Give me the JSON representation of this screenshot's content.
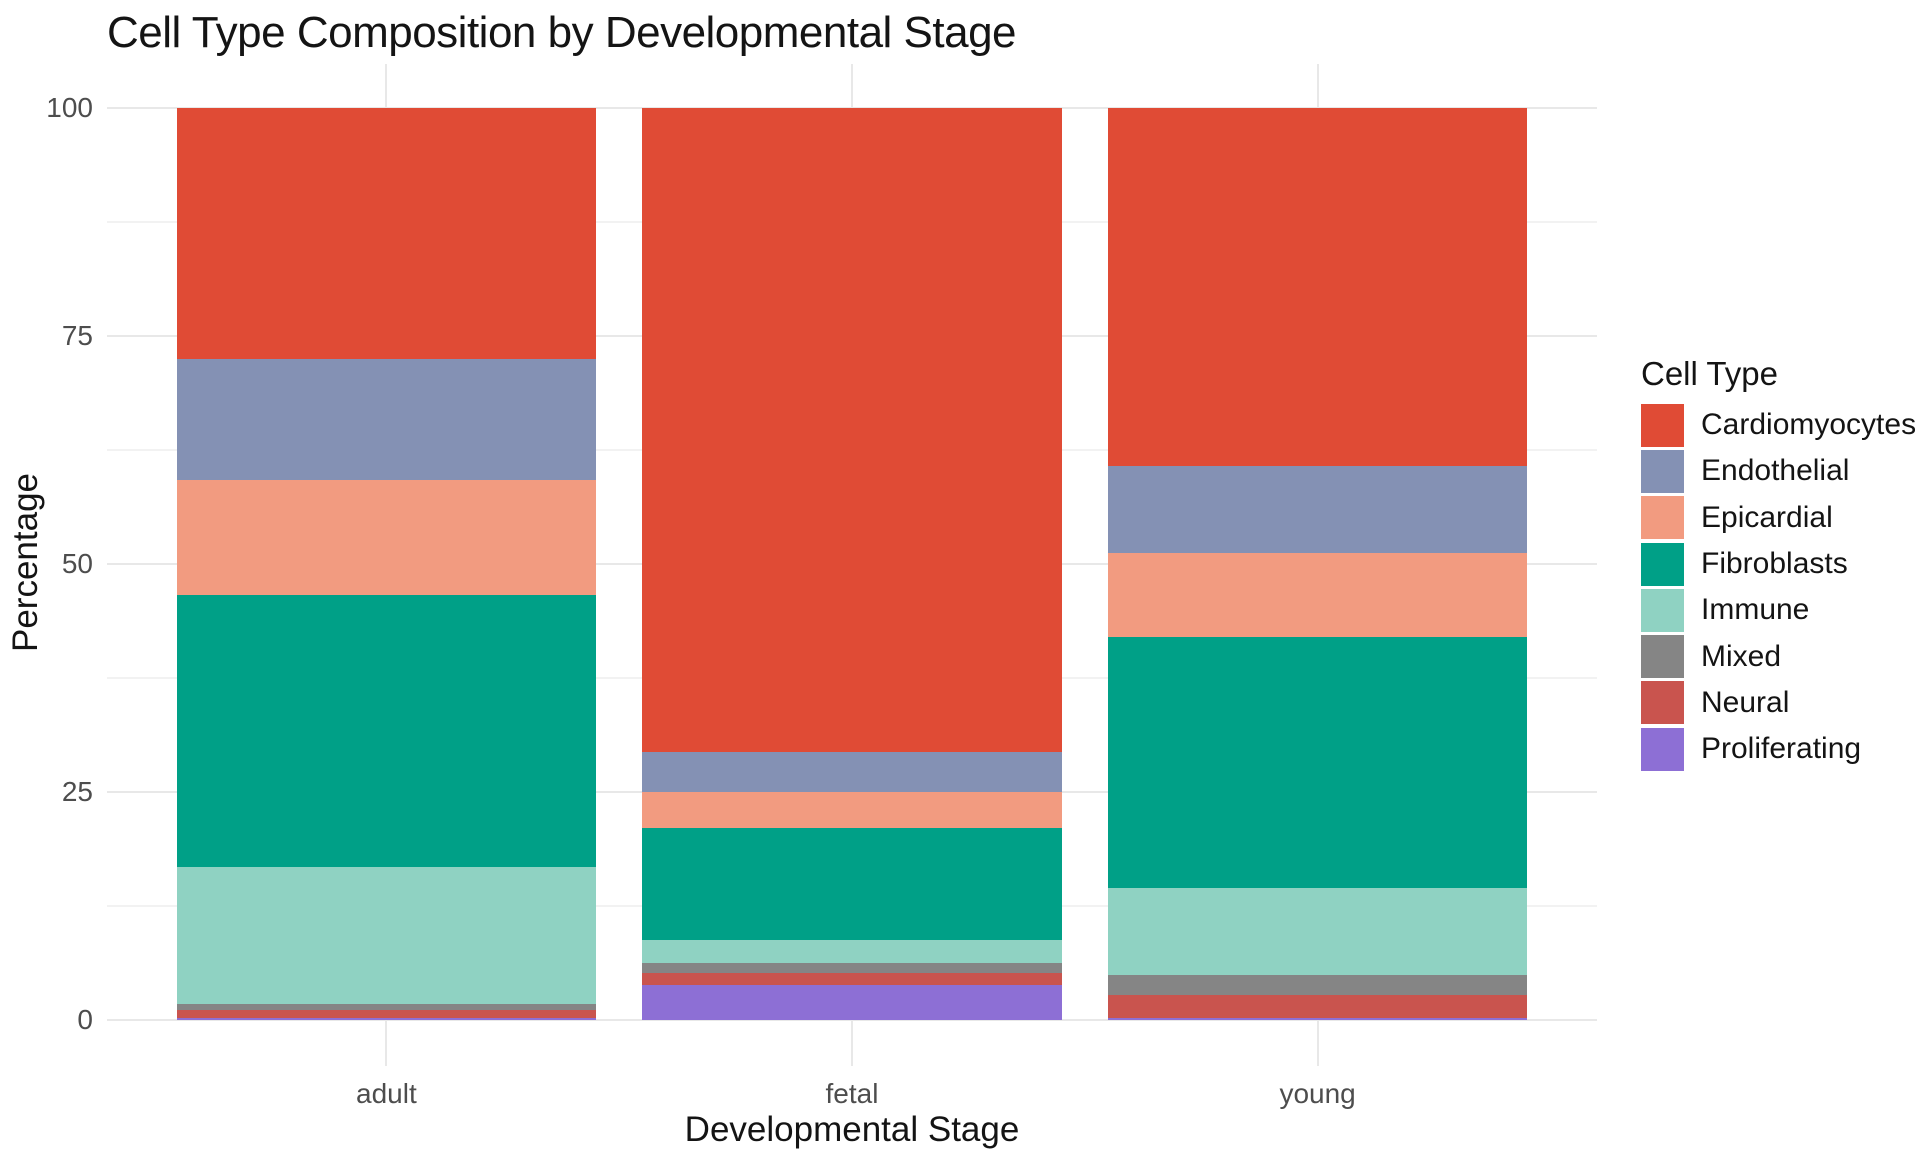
{
  "chart_data": {
    "type": "bar",
    "stacked": true,
    "title": "Cell Type Composition by Developmental Stage",
    "xlabel": "Developmental Stage",
    "ylabel": "Percentage",
    "legend_title": "Cell Type",
    "legend_position": "right",
    "grid": true,
    "categories": [
      "adult",
      "fetal",
      "young"
    ],
    "ylim": [
      0,
      100
    ],
    "y_ticks": [
      0,
      25,
      50,
      75,
      100
    ],
    "y_minor_ticks": [
      12.5,
      37.5,
      62.5,
      87.5
    ],
    "series": [
      {
        "name": "Cardiomyocytes",
        "color": "#e04b35",
        "values": [
          27.5,
          70.6,
          39.3
        ]
      },
      {
        "name": "Endothelial",
        "color": "#8491b4",
        "values": [
          13.3,
          4.4,
          9.5
        ]
      },
      {
        "name": "Epicardial",
        "color": "#f29b80",
        "values": [
          12.6,
          4.0,
          9.2
        ]
      },
      {
        "name": "Fibroblasts",
        "color": "#00a087",
        "values": [
          29.8,
          12.2,
          27.5
        ]
      },
      {
        "name": "Immune",
        "color": "#8fd2c2",
        "values": [
          15.0,
          2.5,
          9.6
        ]
      },
      {
        "name": "Mixed",
        "color": "#858585",
        "values": [
          0.7,
          1.2,
          2.2
        ]
      },
      {
        "name": "Neural",
        "color": "#c9544e",
        "values": [
          0.9,
          1.3,
          2.5
        ]
      },
      {
        "name": "Proliferating",
        "color": "#8d6fd5",
        "values": [
          0.2,
          3.8,
          0.2
        ]
      }
    ],
    "stack_order_bottom_to_top": [
      "Proliferating",
      "Neural",
      "Mixed",
      "Immune",
      "Fibroblasts",
      "Epicardial",
      "Endothelial",
      "Cardiomyocytes"
    ]
  }
}
